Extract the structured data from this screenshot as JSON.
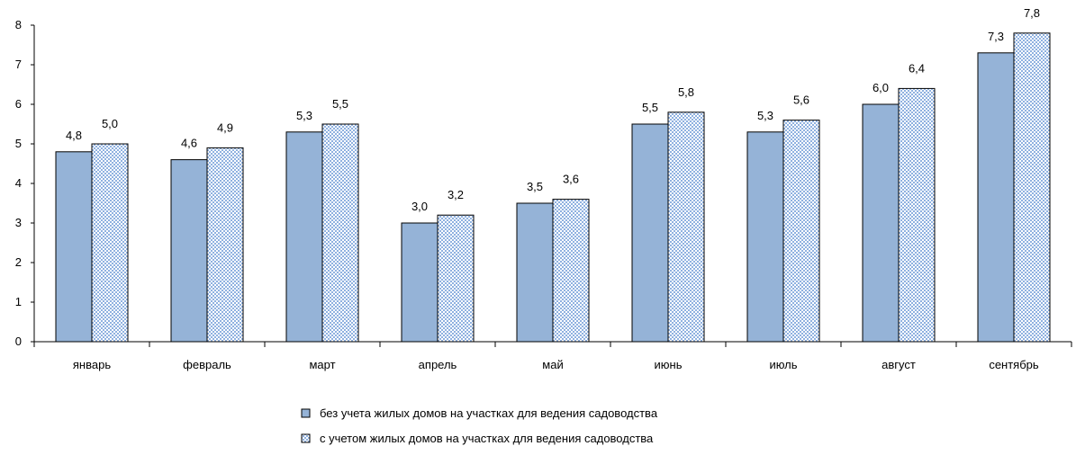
{
  "chart_data": {
    "type": "bar",
    "categories": [
      "январь",
      "февраль",
      "март",
      "апрель",
      "май",
      "июнь",
      "июль",
      "август",
      "сентябрь"
    ],
    "series": [
      {
        "name": "без учета жилых домов на участках для ведения садоводства",
        "values": [
          4.8,
          4.6,
          5.3,
          3.0,
          3.5,
          5.5,
          5.3,
          6.0,
          7.3
        ],
        "labels": [
          "4,8",
          "4,6",
          "5,3",
          "3,0",
          "3,5",
          "5,5",
          "5,3",
          "6,0",
          "7,3"
        ],
        "color": "#95b3d7"
      },
      {
        "name": "с учетом жилых домов на участках для ведения садоводства",
        "values": [
          5.0,
          4.9,
          5.5,
          3.2,
          3.6,
          5.8,
          5.6,
          6.4,
          7.8
        ],
        "labels": [
          "5,0",
          "4,9",
          "5,5",
          "3,2",
          "3,6",
          "5,8",
          "5,6",
          "6,4",
          "7,8"
        ],
        "color": "#c5d9f1",
        "pattern": "checkered"
      }
    ],
    "ylim": [
      0,
      8
    ],
    "yticks": [
      "0",
      "1",
      "2",
      "3",
      "4",
      "5",
      "6",
      "7",
      "8"
    ],
    "grid": false,
    "legend_position": "bottom-center"
  }
}
